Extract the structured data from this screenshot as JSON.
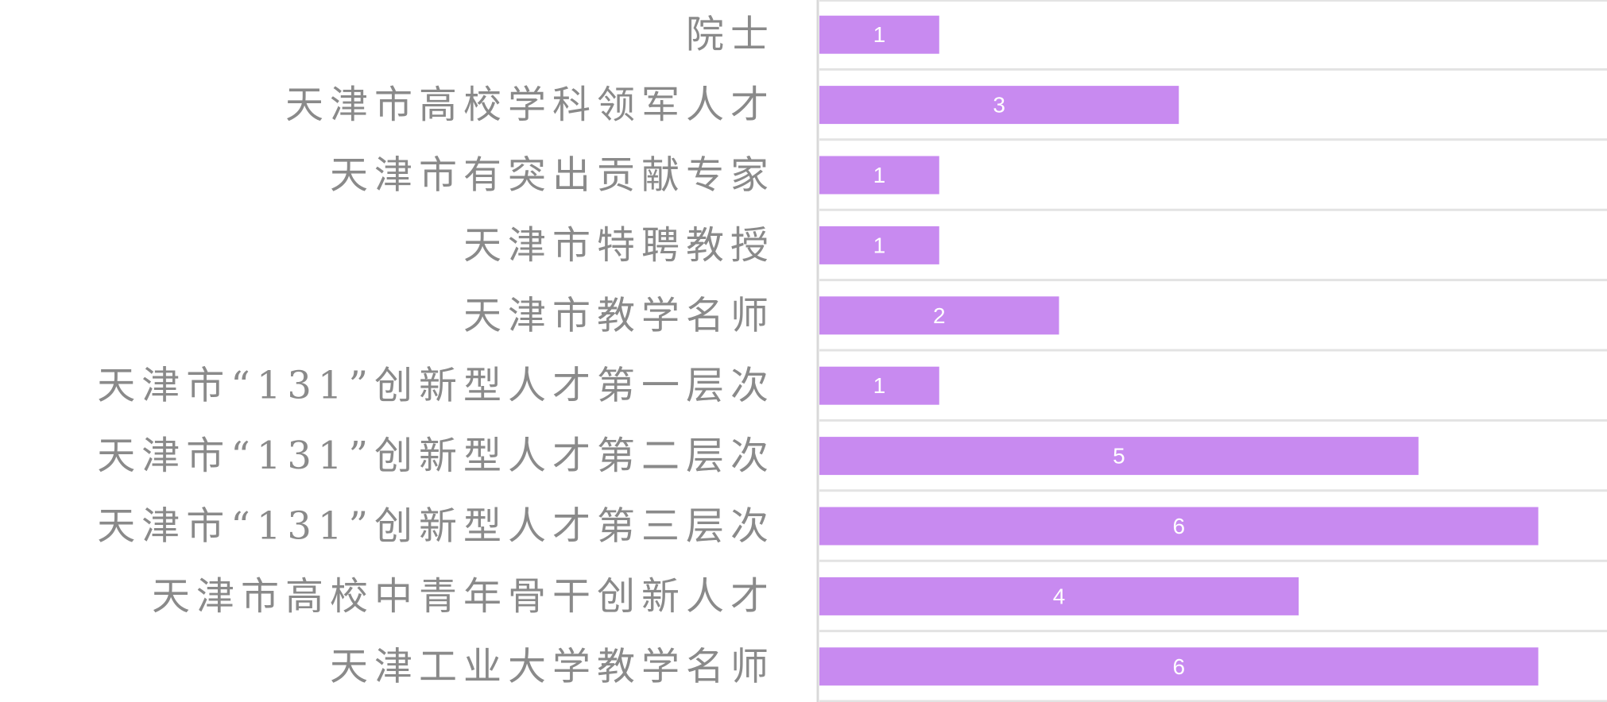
{
  "chart_data": {
    "type": "bar",
    "orientation": "horizontal",
    "categories": [
      "院士",
      "天津市高校学科领军人才",
      "天津市有突出贡献专家",
      "天津市特聘教授",
      "天津市教学名师",
      "天津市“131”创新型人才第一层次",
      "天津市“131”创新型人才第二层次",
      "天津市“131”创新型人才第三层次",
      "天津市高校中青年骨干创新人才",
      "天津工业大学教学名师"
    ],
    "values": [
      1,
      3,
      1,
      1,
      2,
      1,
      5,
      6,
      4,
      6
    ],
    "data_labels": [
      "1",
      "3",
      "1",
      "1",
      "2",
      "1",
      "5",
      "6",
      "4",
      "6"
    ],
    "bar_color": "#c88af0",
    "gridline_color": "#e3e3e3",
    "label_color": "#8a8a8a",
    "grid": true,
    "legend": "none",
    "xlim": [
      0,
      6.6
    ]
  }
}
